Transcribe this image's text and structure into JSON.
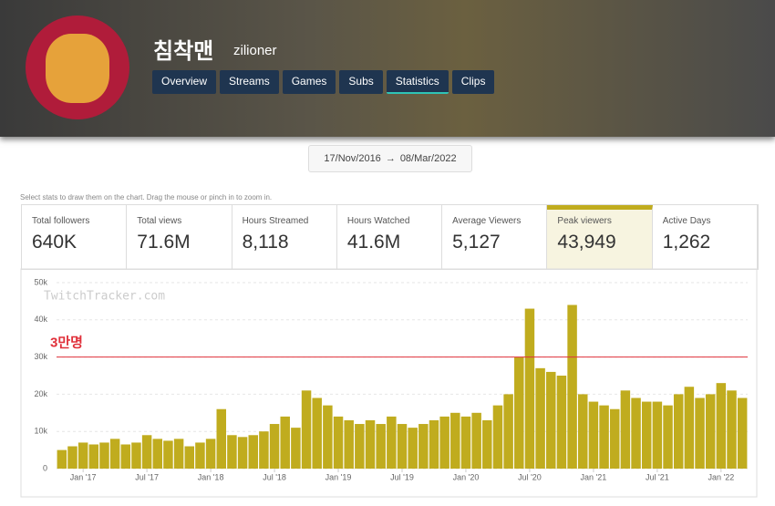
{
  "header": {
    "title": "침착맨",
    "username": "zilioner",
    "tabs": [
      "Overview",
      "Streams",
      "Games",
      "Subs",
      "Statistics",
      "Clips"
    ],
    "active_tab": 4
  },
  "date_range": {
    "start": "17/Nov/2016",
    "arrow": "→",
    "end": "08/Mar/2022"
  },
  "hint": "Select stats to draw them on the chart. Drag the mouse or pinch in to zoom in.",
  "stats": [
    {
      "label": "Total followers",
      "value": "640K"
    },
    {
      "label": "Total views",
      "value": "71.6M"
    },
    {
      "label": "Hours Streamed",
      "value": "8,118"
    },
    {
      "label": "Hours Watched",
      "value": "41.6M"
    },
    {
      "label": "Average Viewers",
      "value": "5,127"
    },
    {
      "label": "Peak viewers",
      "value": "43,949"
    },
    {
      "label": "Active Days",
      "value": "1,262"
    }
  ],
  "selected_stat": 5,
  "chart_data": {
    "type": "bar",
    "watermark": "TwitchTracker.com",
    "color": "#c0ac1e",
    "x": [
      "2016-11",
      "2016-12",
      "2017-01",
      "2017-02",
      "2017-03",
      "2017-04",
      "2017-05",
      "2017-06",
      "2017-07",
      "2017-08",
      "2017-09",
      "2017-10",
      "2017-11",
      "2017-12",
      "2018-01",
      "2018-02",
      "2018-03",
      "2018-04",
      "2018-05",
      "2018-06",
      "2018-07",
      "2018-08",
      "2018-09",
      "2018-10",
      "2018-11",
      "2018-12",
      "2019-01",
      "2019-02",
      "2019-03",
      "2019-04",
      "2019-05",
      "2019-06",
      "2019-07",
      "2019-08",
      "2019-09",
      "2019-10",
      "2019-11",
      "2019-12",
      "2020-01",
      "2020-02",
      "2020-03",
      "2020-04",
      "2020-05",
      "2020-06",
      "2020-07",
      "2020-08",
      "2020-09",
      "2020-10",
      "2020-11",
      "2020-12",
      "2021-01",
      "2021-02",
      "2021-03",
      "2021-04",
      "2021-05",
      "2021-06",
      "2021-07",
      "2021-08",
      "2021-09",
      "2021-10",
      "2021-11",
      "2021-12",
      "2022-01",
      "2022-02",
      "2022-03"
    ],
    "values": [
      5000,
      6000,
      7000,
      6500,
      7000,
      8000,
      6500,
      7000,
      9000,
      8000,
      7500,
      8000,
      6000,
      7000,
      8000,
      16000,
      9000,
      8500,
      9000,
      10000,
      12000,
      14000,
      11000,
      21000,
      19000,
      17000,
      14000,
      13000,
      12000,
      13000,
      12000,
      14000,
      12000,
      11000,
      12000,
      13000,
      14000,
      15000,
      14000,
      15000,
      13000,
      17000,
      20000,
      30000,
      43000,
      27000,
      26000,
      25000,
      44000,
      20000,
      18000,
      17000,
      16000,
      21000,
      19000,
      18000,
      18000,
      17000,
      20000,
      22000,
      19000,
      20000,
      23000,
      21000,
      19000
    ],
    "ylim": [
      0,
      50000
    ],
    "yticks": [
      0,
      {
        "value": 10000,
        "label": "10k"
      },
      {
        "value": 20000,
        "label": "20k"
      },
      {
        "value": 30000,
        "label": "30k"
      },
      {
        "value": 40000,
        "label": "40k"
      },
      {
        "value": 50000,
        "label": "50k"
      }
    ],
    "xticks": [
      {
        "value": "2017-01",
        "label": "Jan '17"
      },
      {
        "value": "2017-07",
        "label": "Jul '17"
      },
      {
        "value": "2018-01",
        "label": "Jan '18"
      },
      {
        "value": "2018-07",
        "label": "Jul '18"
      },
      {
        "value": "2019-01",
        "label": "Jan '19"
      },
      {
        "value": "2019-07",
        "label": "Jul '19"
      },
      {
        "value": "2020-01",
        "label": "Jan '20"
      },
      {
        "value": "2020-07",
        "label": "Jul '20"
      },
      {
        "value": "2021-01",
        "label": "Jan '21"
      },
      {
        "value": "2021-07",
        "label": "Jul '21"
      },
      {
        "value": "2022-01",
        "label": "Jan '22"
      }
    ],
    "grid": true,
    "reference_line": {
      "value": 30000,
      "label": "3만명",
      "color": "#e0303a"
    }
  }
}
